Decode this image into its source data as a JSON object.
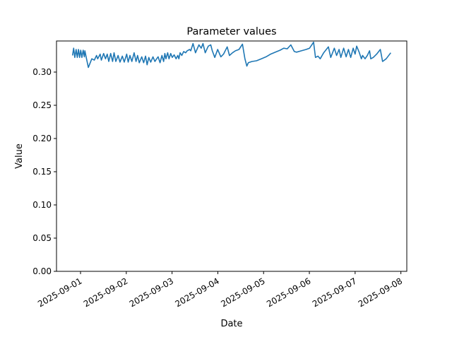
{
  "chart_data": {
    "type": "line",
    "title": "Parameter values",
    "xlabel": "Date",
    "ylabel": "Value",
    "xlim": [
      "2025-08-31 11:24",
      "2025-09-08 03:06"
    ],
    "ylim": [
      0,
      0.3468
    ],
    "grid": false,
    "line_color": "#1f77b4",
    "x_ticks": [
      "2025-09-01",
      "2025-09-02",
      "2025-09-03",
      "2025-09-04",
      "2025-09-05",
      "2025-09-06",
      "2025-09-07",
      "2025-09-08"
    ],
    "y_ticks": [
      "0.00",
      "0.05",
      "0.10",
      "0.15",
      "0.20",
      "0.25",
      "0.30"
    ],
    "points": [
      [
        "2025-08-31 19:48",
        0.325
      ],
      [
        "2025-08-31 20:24",
        0.336
      ],
      [
        "2025-08-31 21:00",
        0.322
      ],
      [
        "2025-08-31 21:42",
        0.334
      ],
      [
        "2025-08-31 22:18",
        0.322
      ],
      [
        "2025-08-31 22:54",
        0.334
      ],
      [
        "2025-08-31 23:30",
        0.322
      ],
      [
        "2025-09-01 00:06",
        0.333
      ],
      [
        "2025-09-01 00:42",
        0.322
      ],
      [
        "2025-09-01 01:24",
        0.333
      ],
      [
        "2025-09-01 02:00",
        0.323
      ],
      [
        "2025-09-01 02:18",
        0.332
      ],
      [
        "2025-09-01 03:00",
        0.322
      ],
      [
        "2025-09-01 04:06",
        0.307
      ],
      [
        "2025-09-01 05:54",
        0.32
      ],
      [
        "2025-09-01 07:12",
        0.318
      ],
      [
        "2025-09-01 08:24",
        0.325
      ],
      [
        "2025-09-01 09:00",
        0.32
      ],
      [
        "2025-09-01 10:18",
        0.327
      ],
      [
        "2025-09-01 10:54",
        0.318
      ],
      [
        "2025-09-01 12:06",
        0.328
      ],
      [
        "2025-09-01 13:06",
        0.32
      ],
      [
        "2025-09-01 14:00",
        0.327
      ],
      [
        "2025-09-01 14:48",
        0.316
      ],
      [
        "2025-09-01 15:48",
        0.328
      ],
      [
        "2025-09-01 16:48",
        0.316
      ],
      [
        "2025-09-01 17:36",
        0.329
      ],
      [
        "2025-09-01 18:30",
        0.316
      ],
      [
        "2025-09-01 19:42",
        0.325
      ],
      [
        "2025-09-01 20:42",
        0.315
      ],
      [
        "2025-09-01 21:54",
        0.324
      ],
      [
        "2025-09-01 22:54",
        0.315
      ],
      [
        "2025-09-02 00:12",
        0.327
      ],
      [
        "2025-09-02 01:00",
        0.315
      ],
      [
        "2025-09-02 01:54",
        0.325
      ],
      [
        "2025-09-02 02:54",
        0.316
      ],
      [
        "2025-09-02 04:06",
        0.329
      ],
      [
        "2025-09-02 05:06",
        0.316
      ],
      [
        "2025-09-02 05:54",
        0.325
      ],
      [
        "2025-09-02 06:48",
        0.314
      ],
      [
        "2025-09-02 08:06",
        0.323
      ],
      [
        "2025-09-02 09:06",
        0.314
      ],
      [
        "2025-09-02 10:06",
        0.324
      ],
      [
        "2025-09-02 10:54",
        0.311
      ],
      [
        "2025-09-02 11:48",
        0.322
      ],
      [
        "2025-09-02 12:48",
        0.315
      ],
      [
        "2025-09-02 14:00",
        0.323
      ],
      [
        "2025-09-02 15:00",
        0.316
      ],
      [
        "2025-09-02 15:54",
        0.32
      ],
      [
        "2025-09-02 16:42",
        0.323
      ],
      [
        "2025-09-02 17:42",
        0.314
      ],
      [
        "2025-09-02 18:42",
        0.325
      ],
      [
        "2025-09-02 19:36",
        0.316
      ],
      [
        "2025-09-02 20:12",
        0.328
      ],
      [
        "2025-09-02 20:48",
        0.32
      ],
      [
        "2025-09-02 21:42",
        0.329
      ],
      [
        "2025-09-02 22:24",
        0.32
      ],
      [
        "2025-09-02 23:18",
        0.328
      ],
      [
        "2025-09-03 00:06",
        0.322
      ],
      [
        "2025-09-03 01:06",
        0.326
      ],
      [
        "2025-09-03 02:06",
        0.32
      ],
      [
        "2025-09-03 03:00",
        0.325
      ],
      [
        "2025-09-03 03:36",
        0.32
      ],
      [
        "2025-09-03 04:12",
        0.329
      ],
      [
        "2025-09-03 05:06",
        0.325
      ],
      [
        "2025-09-03 06:06",
        0.331
      ],
      [
        "2025-09-03 07:06",
        0.329
      ],
      [
        "2025-09-03 07:54",
        0.332
      ],
      [
        "2025-09-03 09:12",
        0.334
      ],
      [
        "2025-09-03 09:48",
        0.332
      ],
      [
        "2025-09-03 11:00",
        0.343
      ],
      [
        "2025-09-03 12:18",
        0.329
      ],
      [
        "2025-09-03 14:06",
        0.341
      ],
      [
        "2025-09-03 15:18",
        0.336
      ],
      [
        "2025-09-03 16:12",
        0.343
      ],
      [
        "2025-09-03 17:24",
        0.329
      ],
      [
        "2025-09-03 19:00",
        0.339
      ],
      [
        "2025-09-03 20:18",
        0.341
      ],
      [
        "2025-09-03 21:06",
        0.332
      ],
      [
        "2025-09-03 22:24",
        0.322
      ],
      [
        "2025-09-03 23:54",
        0.334
      ],
      [
        "2025-09-04 01:36",
        0.323
      ],
      [
        "2025-09-04 03:00",
        0.327
      ],
      [
        "2025-09-04 04:54",
        0.338
      ],
      [
        "2025-09-04 06:06",
        0.325
      ],
      [
        "2025-09-04 07:42",
        0.329
      ],
      [
        "2025-09-04 09:12",
        0.332
      ],
      [
        "2025-09-04 11:06",
        0.334
      ],
      [
        "2025-09-04 12:54",
        0.342
      ],
      [
        "2025-09-04 14:12",
        0.32
      ],
      [
        "2025-09-04 15:12",
        0.309
      ],
      [
        "2025-09-04 16:00",
        0.314
      ],
      [
        "2025-09-04 17:54",
        0.316
      ],
      [
        "2025-09-04 20:18",
        0.317
      ],
      [
        "2025-09-04 22:48",
        0.32
      ],
      [
        "2025-09-05 01:18",
        0.323
      ],
      [
        "2025-09-05 03:42",
        0.327
      ],
      [
        "2025-09-05 06:12",
        0.33
      ],
      [
        "2025-09-05 08:42",
        0.333
      ],
      [
        "2025-09-05 10:36",
        0.336
      ],
      [
        "2025-09-05 12:24",
        0.335
      ],
      [
        "2025-09-05 14:18",
        0.341
      ],
      [
        "2025-09-05 16:06",
        0.331
      ],
      [
        "2025-09-05 17:18",
        0.33
      ],
      [
        "2025-09-05 19:48",
        0.332
      ],
      [
        "2025-09-05 22:18",
        0.334
      ],
      [
        "2025-09-06 00:06",
        0.336
      ],
      [
        "2025-09-06 02:12",
        0.345
      ],
      [
        "2025-09-06 03:12",
        0.322
      ],
      [
        "2025-09-06 04:30",
        0.324
      ],
      [
        "2025-09-06 05:42",
        0.32
      ],
      [
        "2025-09-06 07:30",
        0.329
      ],
      [
        "2025-09-06 10:00",
        0.338
      ],
      [
        "2025-09-06 11:12",
        0.322
      ],
      [
        "2025-09-06 13:06",
        0.336
      ],
      [
        "2025-09-06 14:18",
        0.325
      ],
      [
        "2025-09-06 15:36",
        0.334
      ],
      [
        "2025-09-06 16:30",
        0.322
      ],
      [
        "2025-09-06 18:00",
        0.336
      ],
      [
        "2025-09-06 19:18",
        0.323
      ],
      [
        "2025-09-06 20:30",
        0.334
      ],
      [
        "2025-09-06 21:42",
        0.322
      ],
      [
        "2025-09-06 23:00",
        0.336
      ],
      [
        "2025-09-07 00:00",
        0.327
      ],
      [
        "2025-09-07 00:48",
        0.339
      ],
      [
        "2025-09-07 02:06",
        0.33
      ],
      [
        "2025-09-07 03:18",
        0.32
      ],
      [
        "2025-09-07 03:54",
        0.325
      ],
      [
        "2025-09-07 05:12",
        0.32
      ],
      [
        "2025-09-07 06:24",
        0.325
      ],
      [
        "2025-09-07 07:36",
        0.332
      ],
      [
        "2025-09-07 08:12",
        0.32
      ],
      [
        "2025-09-07 09:30",
        0.322
      ],
      [
        "2025-09-07 11:18",
        0.327
      ],
      [
        "2025-09-07 13:12",
        0.334
      ],
      [
        "2025-09-07 14:24",
        0.316
      ],
      [
        "2025-09-07 16:18",
        0.32
      ],
      [
        "2025-09-07 18:42",
        0.329
      ]
    ]
  }
}
